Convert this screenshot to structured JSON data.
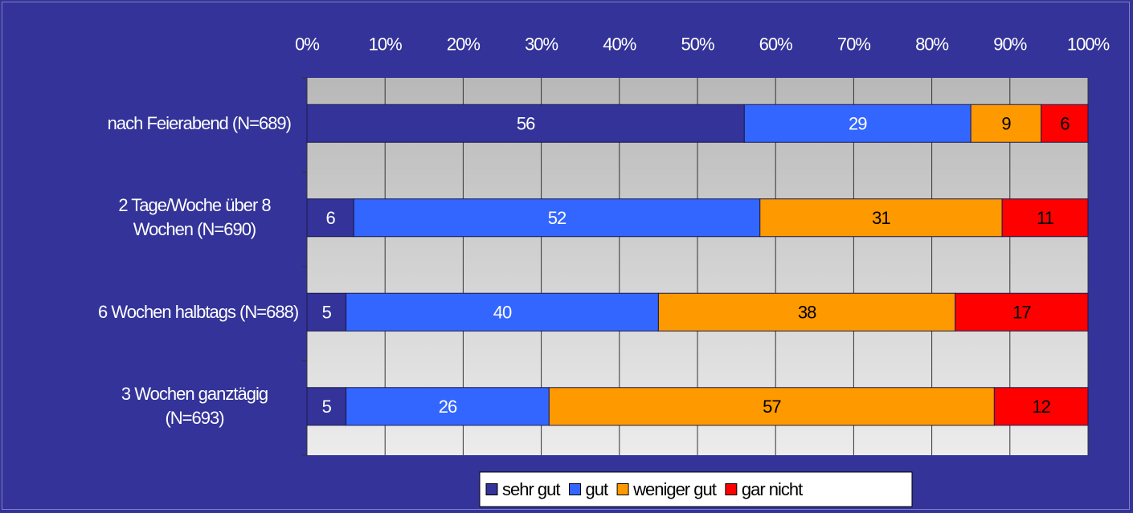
{
  "chart_data": {
    "type": "stacked_bar_horizontal",
    "categories": [
      "nach Feierabend (N=689)",
      "2 Tage/Woche über 8 Wochen (N=690)",
      "6 Wochen halbtags (N=688)",
      "3 Wochen ganztägig (N=693)"
    ],
    "series": [
      {
        "name": "sehr gut",
        "color": "#333399",
        "label_color": "#ffffff",
        "values": [
          56,
          6,
          5,
          5
        ]
      },
      {
        "name": "gut",
        "color": "#3366ff",
        "label_color": "#ffffff",
        "values": [
          29,
          52,
          40,
          26
        ]
      },
      {
        "name": "weniger gut",
        "color": "#ff9900",
        "label_color": "#000000",
        "values": [
          9,
          31,
          38,
          57
        ]
      },
      {
        "name": "gar nicht",
        "color": "#ff0000",
        "label_color": "#000000",
        "values": [
          6,
          11,
          17,
          12
        ]
      }
    ],
    "xlim": [
      0,
      100
    ],
    "xticks": [
      {
        "value": 0,
        "label": "0%"
      },
      {
        "value": 10,
        "label": "10%"
      },
      {
        "value": 20,
        "label": "20%"
      },
      {
        "value": 30,
        "label": "30%"
      },
      {
        "value": 40,
        "label": "40%"
      },
      {
        "value": 50,
        "label": "50%"
      },
      {
        "value": 60,
        "label": "60%"
      },
      {
        "value": 70,
        "label": "70%"
      },
      {
        "value": 80,
        "label": "80%"
      },
      {
        "value": 90,
        "label": "90%"
      },
      {
        "value": 100,
        "label": "100%"
      }
    ],
    "grid": true,
    "legend": "bottom"
  }
}
